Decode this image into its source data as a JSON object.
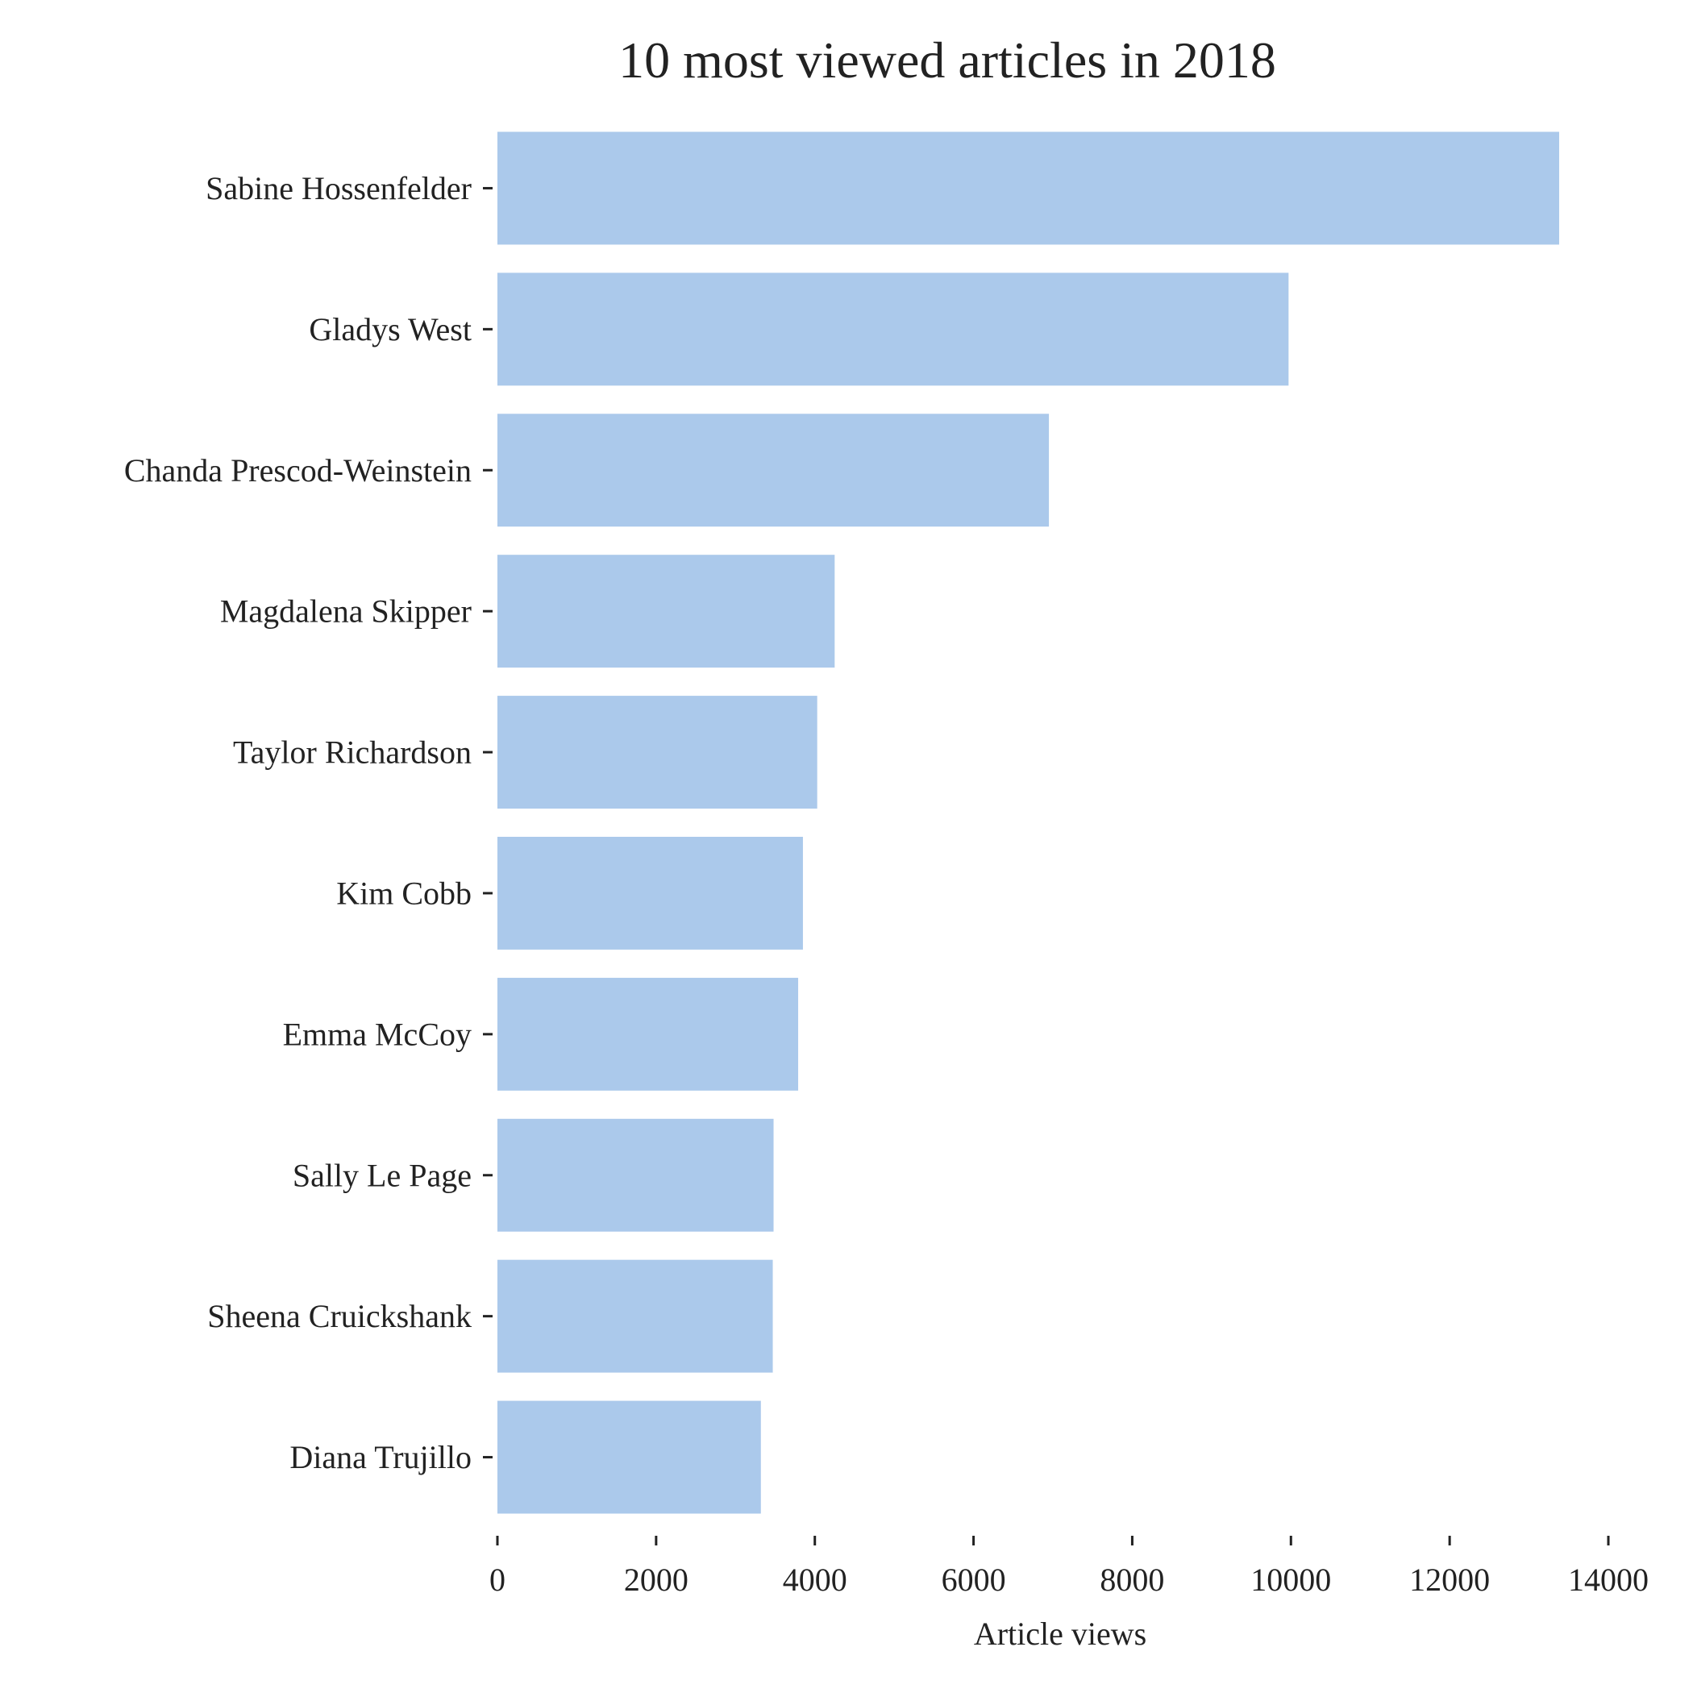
{
  "chart_data": {
    "type": "bar",
    "orientation": "horizontal",
    "title": "10 most viewed articles in 2018",
    "xlabel": "Article views",
    "ylabel": "",
    "categories": [
      "Sabine Hossenfelder",
      "Gladys West",
      "Chanda Prescod-Weinstein",
      "Magdalena Skipper",
      "Taylor Richardson",
      "Kim Cobb",
      "Emma McCoy",
      "Sally Le Page",
      "Sheena Cruickshank",
      "Diana Trujillo"
    ],
    "values": [
      13380,
      9970,
      6950,
      4250,
      4030,
      3850,
      3790,
      3480,
      3470,
      3320
    ],
    "xlim": [
      0,
      14000
    ],
    "xticks": [
      0,
      2000,
      4000,
      6000,
      8000,
      10000,
      12000,
      14000
    ],
    "xtick_labels": [
      "0",
      "2000",
      "4000",
      "6000",
      "8000",
      "10000",
      "12000",
      "14000"
    ],
    "grid": false,
    "legend": "none",
    "bar_color": "#abc9eb"
  }
}
